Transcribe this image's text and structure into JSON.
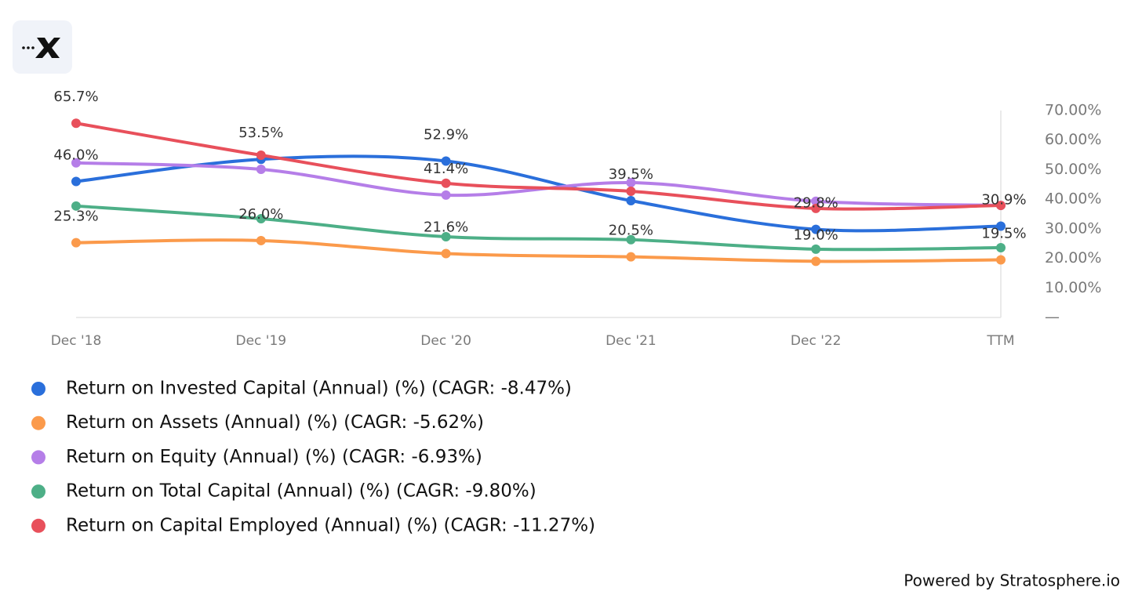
{
  "chart_data": {
    "type": "line",
    "categories": [
      "Dec '18",
      "Dec '19",
      "Dec '20",
      "Dec '21",
      "Dec '22",
      "TTM"
    ],
    "ylim": [
      0,
      70
    ],
    "yticks": [
      {
        "value": 0,
        "label": "—"
      },
      {
        "value": 10,
        "label": "10.00%"
      },
      {
        "value": 20,
        "label": "20.00%"
      },
      {
        "value": 30,
        "label": "30.00%"
      },
      {
        "value": 40,
        "label": "40.00%"
      },
      {
        "value": 50,
        "label": "50.00%"
      },
      {
        "value": 60,
        "label": "60.00%"
      },
      {
        "value": 70,
        "label": "70.00%"
      }
    ],
    "y_axis_side": "right",
    "grid": false,
    "legend": "bottom",
    "series": [
      {
        "name": "Return on Invested Capital (Annual) (%) (CAGR: -8.47%)",
        "color": "#2a6fdb",
        "values": [
          46.0,
          53.5,
          52.9,
          39.5,
          29.8,
          30.9
        ],
        "value_labels": [
          "46.0%",
          "53.5%",
          "52.9%",
          "39.5%",
          "29.8%",
          "30.9%"
        ]
      },
      {
        "name": "Return on Assets (Annual) (%) (CAGR: -5.62%)",
        "color": "#fb9a4b",
        "values": [
          25.3,
          26.0,
          21.6,
          20.5,
          19.0,
          19.5
        ],
        "value_labels": [
          "25.3%",
          "26.0%",
          "21.6%",
          "20.5%",
          "19.0%",
          "19.5%"
        ]
      },
      {
        "name": "Return on Equity (Annual) (%) (CAGR: -6.93%)",
        "color": "#b57ee8",
        "values": [
          52.3,
          50.1,
          41.4,
          45.6,
          39.3,
          37.9
        ],
        "value_labels": [
          null,
          null,
          "41.4%",
          null,
          null,
          null
        ]
      },
      {
        "name": "Return on Total Capital (Annual) (%) (CAGR: -9.80%)",
        "color": "#4daf87",
        "values": [
          37.7,
          33.4,
          27.3,
          26.3,
          23.1,
          23.6
        ]
      },
      {
        "name": "Return on Capital Employed (Annual) (%) (CAGR: -11.27%)",
        "color": "#e8505b",
        "values": [
          65.7,
          54.9,
          45.4,
          42.7,
          36.9,
          37.9
        ],
        "value_labels": [
          "65.7%",
          null,
          null,
          null,
          null,
          null
        ]
      }
    ]
  },
  "footer": "Powered by Stratosphere.io"
}
